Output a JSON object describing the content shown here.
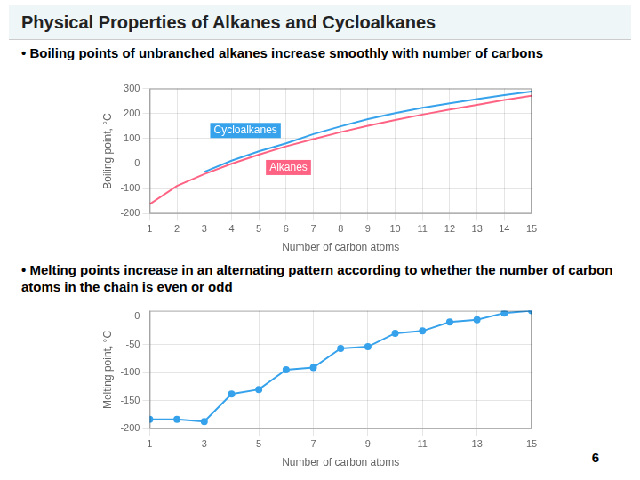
{
  "title": "Physical Properties of Alkanes and Cycloalkanes",
  "annotations": [
    "Boiling points of unbranched alkanes increase smoothly with number of carbons",
    "Melting points increase in an alternating pattern according to whether the number of carbon atoms in the chain is even or odd",
    "6"
  ],
  "chart_data": [
    {
      "type": "line",
      "xlabel": "Number of carbon atoms",
      "ylabel": "Boiling point, °C",
      "xlim": [
        1,
        15
      ],
      "ylim": [
        -200,
        300
      ],
      "xticks": [
        1,
        2,
        3,
        4,
        5,
        6,
        7,
        8,
        9,
        10,
        11,
        12,
        13,
        14,
        15
      ],
      "yticks": [
        -200,
        -100,
        0,
        100,
        200,
        300
      ],
      "grid": true,
      "series": [
        {
          "name": "Cycloalkanes",
          "x": [
            3,
            4,
            5,
            6,
            7,
            8,
            9,
            10,
            11,
            12,
            13,
            14,
            15
          ],
          "values": [
            -33,
            12,
            49,
            81,
            118,
            149,
            178,
            202,
            223,
            241,
            258,
            274,
            288
          ]
        },
        {
          "name": "Alkanes",
          "x": [
            1,
            2,
            3,
            4,
            5,
            6,
            7,
            8,
            9,
            10,
            11,
            12,
            13,
            14,
            15
          ],
          "values": [
            -162,
            -89,
            -42,
            -0.5,
            36,
            69,
            98,
            126,
            151,
            174,
            196,
            216,
            235,
            254,
            271
          ]
        }
      ]
    },
    {
      "type": "line",
      "xlabel": "Number of carbon atoms",
      "ylabel": "Melting point, °C",
      "xlim": [
        1,
        15
      ],
      "ylim": [
        -200,
        10
      ],
      "xticks": [
        1,
        3,
        5,
        7,
        9,
        11,
        13,
        15
      ],
      "yticks": [
        -200,
        -150,
        -100,
        -50,
        0
      ],
      "grid": true,
      "marker": "circle",
      "x": [
        1,
        2,
        3,
        4,
        5,
        6,
        7,
        8,
        9,
        10,
        11,
        12,
        13,
        14,
        15
      ],
      "values": [
        -183,
        -183,
        -187,
        -138,
        -130,
        -95,
        -91,
        -57,
        -54,
        -30,
        -26,
        -10,
        -6,
        6,
        10
      ]
    }
  ]
}
